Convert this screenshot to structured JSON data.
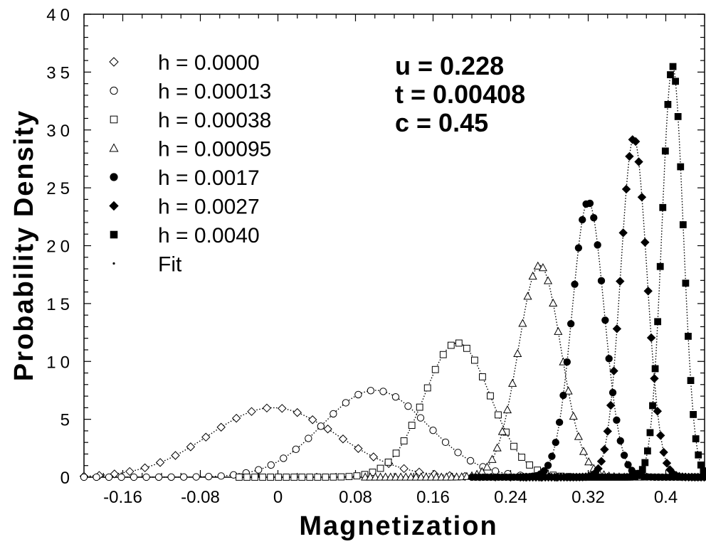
{
  "chart_data": {
    "type": "scatter",
    "xlabel": "Magnetization",
    "ylabel": "Probability  Density",
    "xlim": [
      -0.2,
      0.44
    ],
    "ylim": [
      0,
      40
    ],
    "x_ticks": [
      -0.16,
      -0.08,
      0,
      0.08,
      0.16,
      0.24,
      0.32,
      0.4
    ],
    "x_tick_labels": [
      "-0.16",
      "-0.08",
      "0",
      "0.08",
      "0.16",
      "0.24",
      "0.32",
      "0.4"
    ],
    "y_ticks": [
      0,
      5,
      10,
      15,
      20,
      25,
      30,
      35,
      40
    ],
    "y_tick_labels": [
      "0",
      "5",
      "10",
      "15",
      "20",
      "25",
      "30",
      "35",
      "40"
    ],
    "legend_position": "top-left",
    "annotations": [
      "u  =  0.228",
      "t  =  0.00408",
      "c  =  0.45"
    ],
    "series": [
      {
        "name": "h = 0.0000",
        "marker": "diamond-open",
        "peak_x": -0.005,
        "peak_y": 6.0,
        "sigma": 0.066,
        "x_range": [
          -0.2,
          0.3
        ]
      },
      {
        "name": "h = 0.00013",
        "marker": "circle-open",
        "peak_x": 0.1,
        "peak_y": 7.5,
        "sigma": 0.054,
        "x_range": [
          -0.2,
          0.3
        ]
      },
      {
        "name": "h = 0.00038",
        "marker": "square-open",
        "peak_x": 0.185,
        "peak_y": 11.6,
        "sigma": 0.034,
        "x_range": [
          -0.04,
          0.3
        ]
      },
      {
        "name": "h = 0.00095",
        "marker": "triangle-open",
        "peak_x": 0.27,
        "peak_y": 18.3,
        "sigma": 0.022,
        "x_range": [
          0.09,
          0.38
        ]
      },
      {
        "name": "h = 0.0017",
        "marker": "circle-filled",
        "peak_x": 0.32,
        "peak_y": 23.8,
        "sigma": 0.0165,
        "x_range": [
          0.2,
          0.44
        ]
      },
      {
        "name": "h = 0.0027",
        "marker": "diamond-filled",
        "peak_x": 0.367,
        "peak_y": 29.3,
        "sigma": 0.0135,
        "x_range": [
          0.25,
          0.44
        ]
      },
      {
        "name": "h = 0.0040",
        "marker": "square-filled",
        "peak_x": 0.407,
        "peak_y": 35.5,
        "sigma": 0.011,
        "x_range": [
          0.3,
          0.44
        ]
      }
    ],
    "fit_label": "Fit",
    "fit_marker": "dot"
  }
}
